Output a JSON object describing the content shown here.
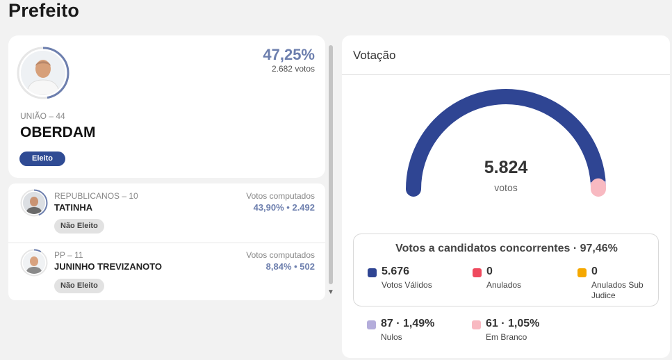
{
  "page_title": "Prefeito",
  "winner": {
    "party": "UNIÃO – 44",
    "name": "OBERDAM",
    "percent": "47,25%",
    "votes": "2.682 votos",
    "status": "Eleito",
    "percent_value": 47.25
  },
  "candidates": [
    {
      "party": "REPUBLICANOS – 10",
      "name": "TATINHA",
      "votes_label": "Votos computados",
      "votes_value": "43,90%  •  2.492",
      "status": "Não Eleito",
      "percent_value": 43.9
    },
    {
      "party": "PP – 11",
      "name": "JUNINHO TREVIZANOTO",
      "votes_label": "Votos computados",
      "votes_value": "8,84%  •  502",
      "status": "Não Eleito",
      "percent_value": 8.84
    }
  ],
  "votacao": {
    "title": "Votação",
    "total": "5.824",
    "total_label": "votos",
    "valid_box_title": "Votos a candidatos concorrentes · 97,46%",
    "items": [
      {
        "value": "5.676",
        "label": "Votos Válidos",
        "color": "#2f4593"
      },
      {
        "value": "0",
        "label": "Anulados",
        "color": "#ef4a5e"
      },
      {
        "value": "0",
        "label": "Anulados Sub Judice",
        "color": "#f5a800"
      },
      {
        "value": "87 · 1,49%",
        "label": "Nulos",
        "color": "#b4addb"
      },
      {
        "value": "61 · 1,05%",
        "label": "Em Branco",
        "color": "#f8b9c1"
      }
    ],
    "gauge_segments": [
      {
        "name": "Votos Válidos",
        "value": 5676,
        "color": "#2f4593"
      },
      {
        "name": "Nulos",
        "value": 87,
        "color": "#b4addb"
      },
      {
        "name": "Em Branco",
        "value": 61,
        "color": "#f8b9c1"
      }
    ]
  },
  "colors": {
    "accent": "#2f4b94",
    "percent_text": "#6d7fae",
    "ring": "#6d7fae"
  }
}
